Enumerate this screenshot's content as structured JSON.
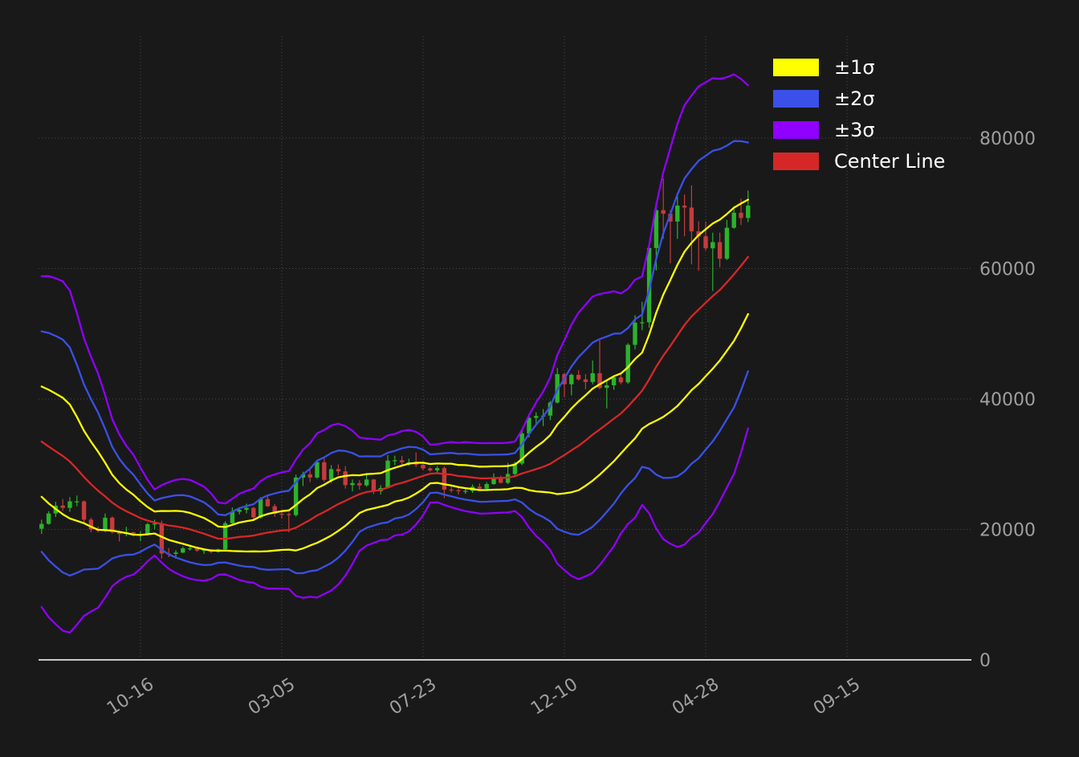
{
  "page": {
    "background": "#191919"
  },
  "chart_data": {
    "type": "candlestick",
    "subtype": "weekly candlesticks with Bollinger-style bands (rolling mean ± 1/2/3 sigma, window 20)",
    "title": "",
    "xlabel": "",
    "ylabel": "",
    "grid": true,
    "legend_position": "upper right",
    "legend": [
      {
        "key": "sigma1",
        "label": "±1σ",
        "color": "#ffff00"
      },
      {
        "key": "sigma2",
        "label": "±2σ",
        "color": "#3a50e8"
      },
      {
        "key": "sigma3",
        "label": "±3σ",
        "color": "#9000ff"
      },
      {
        "key": "center",
        "label": "Center Line",
        "color": "#d62728"
      }
    ],
    "y_axis": {
      "min": 0,
      "max": 95000,
      "tick_values": [
        0,
        20000,
        40000,
        60000,
        80000
      ],
      "tick_labels": [
        "0",
        "20000",
        "40000",
        "60000",
        "80000"
      ]
    },
    "x_axis": {
      "tick_labels": [
        {
          "label": "10-16",
          "candle_index": 14
        },
        {
          "label": "03-05",
          "candle_index": 34
        },
        {
          "label": "07-23",
          "candle_index": 54
        },
        {
          "label": "12-10",
          "candle_index": 74
        },
        {
          "label": "04-28",
          "candle_index": 94
        },
        {
          "label": "09-15",
          "candle_index": 114
        }
      ]
    },
    "candles": {
      "up_color": "#2bb32b",
      "down_color": "#c43c3c",
      "ohlc": [
        [
          20100,
          21500,
          19300,
          20850
        ],
        [
          20850,
          22800,
          20750,
          22450
        ],
        [
          22450,
          24250,
          21900,
          23650
        ],
        [
          23650,
          24650,
          22850,
          23300
        ],
        [
          23300,
          24950,
          22700,
          24300
        ],
        [
          24300,
          25200,
          23550,
          24300
        ],
        [
          24300,
          24450,
          20800,
          21500
        ],
        [
          21500,
          21800,
          19550,
          20000
        ],
        [
          20000,
          20450,
          19550,
          19800
        ],
        [
          19800,
          22450,
          19600,
          21800
        ],
        [
          21800,
          22000,
          19350,
          19550
        ],
        [
          19550,
          19650,
          18150,
          19300
        ],
        [
          19300,
          20400,
          18950,
          19550
        ],
        [
          19550,
          19650,
          18900,
          19100
        ],
        [
          19100,
          19700,
          18200,
          19200
        ],
        [
          19200,
          21000,
          19050,
          20800
        ],
        [
          20800,
          21500,
          20050,
          20900
        ],
        [
          20900,
          21350,
          15500,
          16300
        ],
        [
          16300,
          17150,
          15750,
          16250
        ],
        [
          16250,
          16800,
          15500,
          16450
        ],
        [
          16450,
          17350,
          16350,
          17100
        ],
        [
          17100,
          17450,
          16750,
          17100
        ],
        [
          17100,
          17350,
          16550,
          16750
        ],
        [
          16750,
          16950,
          16250,
          16850
        ],
        [
          16850,
          16950,
          16350,
          16550
        ],
        [
          16550,
          17050,
          16450,
          16950
        ],
        [
          16950,
          21250,
          16900,
          20950
        ],
        [
          20950,
          23350,
          20550,
          22700
        ],
        [
          22700,
          23300,
          22300,
          23000
        ],
        [
          23000,
          23950,
          22450,
          23300
        ],
        [
          23300,
          23450,
          21450,
          21850
        ],
        [
          21850,
          24950,
          21650,
          24650
        ],
        [
          24650,
          25250,
          23450,
          23550
        ],
        [
          23550,
          23900,
          21950,
          22400
        ],
        [
          22400,
          22650,
          21650,
          22350
        ],
        [
          22350,
          22600,
          19550,
          22200
        ],
        [
          22200,
          28400,
          21950,
          27950
        ],
        [
          27950,
          28850,
          26650,
          28450
        ],
        [
          28450,
          29150,
          27250,
          27950
        ],
        [
          27950,
          30600,
          27750,
          30300
        ],
        [
          30300,
          30950,
          27300,
          27600
        ],
        [
          27600,
          29850,
          27150,
          29250
        ],
        [
          29250,
          29950,
          28300,
          28900
        ],
        [
          28900,
          29700,
          26250,
          26800
        ],
        [
          26800,
          27650,
          25850,
          27100
        ],
        [
          27100,
          27550,
          26100,
          26750
        ],
        [
          26750,
          28450,
          26550,
          27650
        ],
        [
          27650,
          27750,
          25400,
          25850
        ],
        [
          25850,
          26800,
          25350,
          26350
        ],
        [
          26350,
          31400,
          26250,
          30550
        ],
        [
          30550,
          31300,
          29850,
          30600
        ],
        [
          30600,
          31250,
          29600,
          30300
        ],
        [
          30300,
          30850,
          29750,
          30300
        ],
        [
          30300,
          31800,
          29550,
          29900
        ],
        [
          29900,
          30350,
          29050,
          29350
        ],
        [
          29350,
          29550,
          28850,
          29050
        ],
        [
          29050,
          29700,
          28650,
          29400
        ],
        [
          29400,
          29650,
          24800,
          26100
        ],
        [
          26100,
          26850,
          25650,
          26000
        ],
        [
          26000,
          26300,
          25350,
          25850
        ],
        [
          25850,
          26450,
          25450,
          25900
        ],
        [
          25900,
          26900,
          25600,
          26550
        ],
        [
          26550,
          27050,
          26050,
          26250
        ],
        [
          26250,
          27250,
          26000,
          26950
        ],
        [
          26950,
          28600,
          26850,
          27950
        ],
        [
          27950,
          28250,
          27050,
          27150
        ],
        [
          27150,
          30200,
          26950,
          28500
        ],
        [
          28500,
          30350,
          28150,
          30100
        ],
        [
          30100,
          35100,
          29850,
          34700
        ],
        [
          34700,
          37500,
          34100,
          37100
        ],
        [
          37100,
          37950,
          36050,
          37400
        ],
        [
          37400,
          38450,
          35850,
          37450
        ],
        [
          37450,
          39700,
          36750,
          39450
        ],
        [
          39450,
          44750,
          39300,
          43800
        ],
        [
          43800,
          44050,
          40250,
          42250
        ],
        [
          42250,
          43900,
          40550,
          43700
        ],
        [
          43700,
          44400,
          42800,
          43000
        ],
        [
          43000,
          43800,
          41500,
          42600
        ],
        [
          42600,
          45900,
          42250,
          43950
        ],
        [
          43950,
          49000,
          41500,
          41700
        ],
        [
          41700,
          42900,
          38550,
          42100
        ],
        [
          42100,
          43350,
          41400,
          43300
        ],
        [
          43300,
          43750,
          42250,
          42550
        ],
        [
          42550,
          48550,
          42300,
          48300
        ],
        [
          48300,
          52850,
          47600,
          51700
        ],
        [
          51700,
          54900,
          50550,
          51750
        ],
        [
          51750,
          64000,
          50900,
          63150
        ],
        [
          63150,
          70200,
          59700,
          68950
        ],
        [
          68950,
          73800,
          64550,
          68400
        ],
        [
          68400,
          68950,
          60800,
          67200
        ],
        [
          67200,
          71550,
          64550,
          69650
        ],
        [
          69650,
          71350,
          64950,
          69350
        ],
        [
          69350,
          72750,
          60650,
          65700
        ],
        [
          65700,
          67250,
          59650,
          64950
        ],
        [
          64950,
          67200,
          62750,
          63100
        ],
        [
          63100,
          65500,
          56550,
          64050
        ],
        [
          64050,
          65500,
          60200,
          61500
        ],
        [
          61500,
          67450,
          61300,
          66250
        ],
        [
          66250,
          69550,
          66100,
          68550
        ],
        [
          68550,
          70700,
          66650,
          67750
        ],
        [
          67750,
          71950,
          67100,
          69650
        ]
      ]
    },
    "bands": {
      "window": 20,
      "multipliers": [
        1,
        2,
        3
      ],
      "seed_closes": [
        37700,
        38050,
        37750,
        41250,
        46850,
        46400,
        42150,
        39700,
        39450,
        38500,
        34050,
        31300,
        29450,
        29850,
        28400,
        26700,
        20550,
        21050,
        19250
      ]
    }
  }
}
